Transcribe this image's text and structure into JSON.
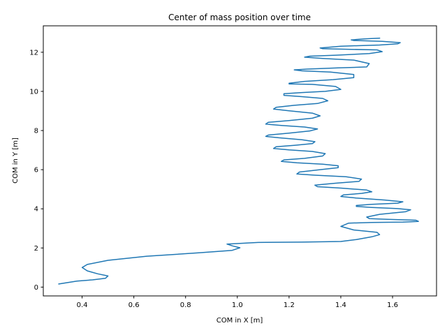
{
  "chart_data": {
    "type": "line",
    "title": "Center of mass position over time",
    "xlabel": "COM in X [m]",
    "ylabel": "COM in Y [m]",
    "xlim": [
      0.25,
      1.77
    ],
    "ylim": [
      -0.45,
      13.35
    ],
    "xticks": [
      0.4,
      0.6,
      0.8,
      1.0,
      1.2,
      1.4,
      1.6
    ],
    "xtick_labels": [
      "0.4",
      "0.6",
      "0.8",
      "1.0",
      "1.2",
      "1.4",
      "1.6"
    ],
    "yticks": [
      0,
      2,
      4,
      6,
      8,
      10,
      12
    ],
    "ytick_labels": [
      "0",
      "2",
      "4",
      "6",
      "8",
      "10",
      "12"
    ],
    "grid": false,
    "series": [
      {
        "color": "#1f77b4",
        "x": [
          0.31,
          0.38,
          0.44,
          0.49,
          0.5,
          0.46,
          0.42,
          0.4,
          0.42,
          0.5,
          0.65,
          0.85,
          0.98,
          1.01,
          0.98,
          0.96,
          1.08,
          1.25,
          1.4,
          1.46,
          1.52,
          1.55,
          1.54,
          1.45,
          1.4,
          1.43,
          1.52,
          1.64,
          1.7,
          1.69,
          1.58,
          1.51,
          1.5,
          1.55,
          1.65,
          1.67,
          1.62,
          1.52,
          1.46,
          1.46,
          1.52,
          1.62,
          1.64,
          1.57,
          1.46,
          1.4,
          1.41,
          1.48,
          1.52,
          1.5,
          1.4,
          1.31,
          1.3,
          1.38,
          1.47,
          1.48,
          1.42,
          1.3,
          1.23,
          1.24,
          1.32,
          1.39,
          1.39,
          1.33,
          1.23,
          1.17,
          1.18,
          1.26,
          1.33,
          1.34,
          1.29,
          1.2,
          1.14,
          1.15,
          1.22,
          1.29,
          1.3,
          1.25,
          1.16,
          1.11,
          1.12,
          1.2,
          1.28,
          1.31,
          1.26,
          1.17,
          1.11,
          1.12,
          1.2,
          1.29,
          1.32,
          1.29,
          1.2,
          1.14,
          1.15,
          1.22,
          1.31,
          1.35,
          1.33,
          1.25,
          1.18,
          1.18,
          1.25,
          1.34,
          1.4,
          1.38,
          1.29,
          1.2,
          1.2,
          1.26,
          1.37,
          1.45,
          1.45,
          1.36,
          1.25,
          1.22,
          1.27,
          1.39,
          1.5,
          1.51,
          1.45,
          1.33,
          1.26,
          1.28,
          1.38,
          1.51,
          1.56,
          1.54,
          1.44,
          1.33,
          1.32,
          1.4,
          1.55,
          1.62,
          1.63,
          1.56,
          1.45,
          1.44,
          1.49,
          1.55
        ],
        "y": [
          0.16,
          0.31,
          0.37,
          0.45,
          0.57,
          0.68,
          0.83,
          1.0,
          1.16,
          1.37,
          1.58,
          1.75,
          1.88,
          2.01,
          2.11,
          2.2,
          2.28,
          2.3,
          2.33,
          2.43,
          2.57,
          2.68,
          2.8,
          2.92,
          3.1,
          3.27,
          3.3,
          3.32,
          3.36,
          3.42,
          3.46,
          3.5,
          3.58,
          3.72,
          3.85,
          3.95,
          4.01,
          4.07,
          4.12,
          4.17,
          4.23,
          4.29,
          4.36,
          4.45,
          4.55,
          4.63,
          4.71,
          4.79,
          4.87,
          4.96,
          5.06,
          5.13,
          5.21,
          5.31,
          5.4,
          5.52,
          5.64,
          5.72,
          5.78,
          5.88,
          6.0,
          6.1,
          6.2,
          6.28,
          6.35,
          6.42,
          6.5,
          6.58,
          6.7,
          6.82,
          6.93,
          7.01,
          7.08,
          7.17,
          7.24,
          7.33,
          7.43,
          7.53,
          7.63,
          7.7,
          7.77,
          7.87,
          7.98,
          8.08,
          8.18,
          8.26,
          8.33,
          8.42,
          8.51,
          8.63,
          8.75,
          8.89,
          9.01,
          9.1,
          9.19,
          9.29,
          9.38,
          9.52,
          9.64,
          9.73,
          9.8,
          9.88,
          9.94,
          10.0,
          10.1,
          10.25,
          10.36,
          10.38,
          10.42,
          10.51,
          10.6,
          10.7,
          10.86,
          10.99,
          11.05,
          11.1,
          11.14,
          11.2,
          11.25,
          11.42,
          11.6,
          11.68,
          11.75,
          11.8,
          11.85,
          11.93,
          12.03,
          12.12,
          12.15,
          12.18,
          12.22,
          12.31,
          12.37,
          12.43,
          12.49,
          12.56,
          12.6,
          12.63,
          12.68,
          12.72
        ]
      }
    ]
  }
}
